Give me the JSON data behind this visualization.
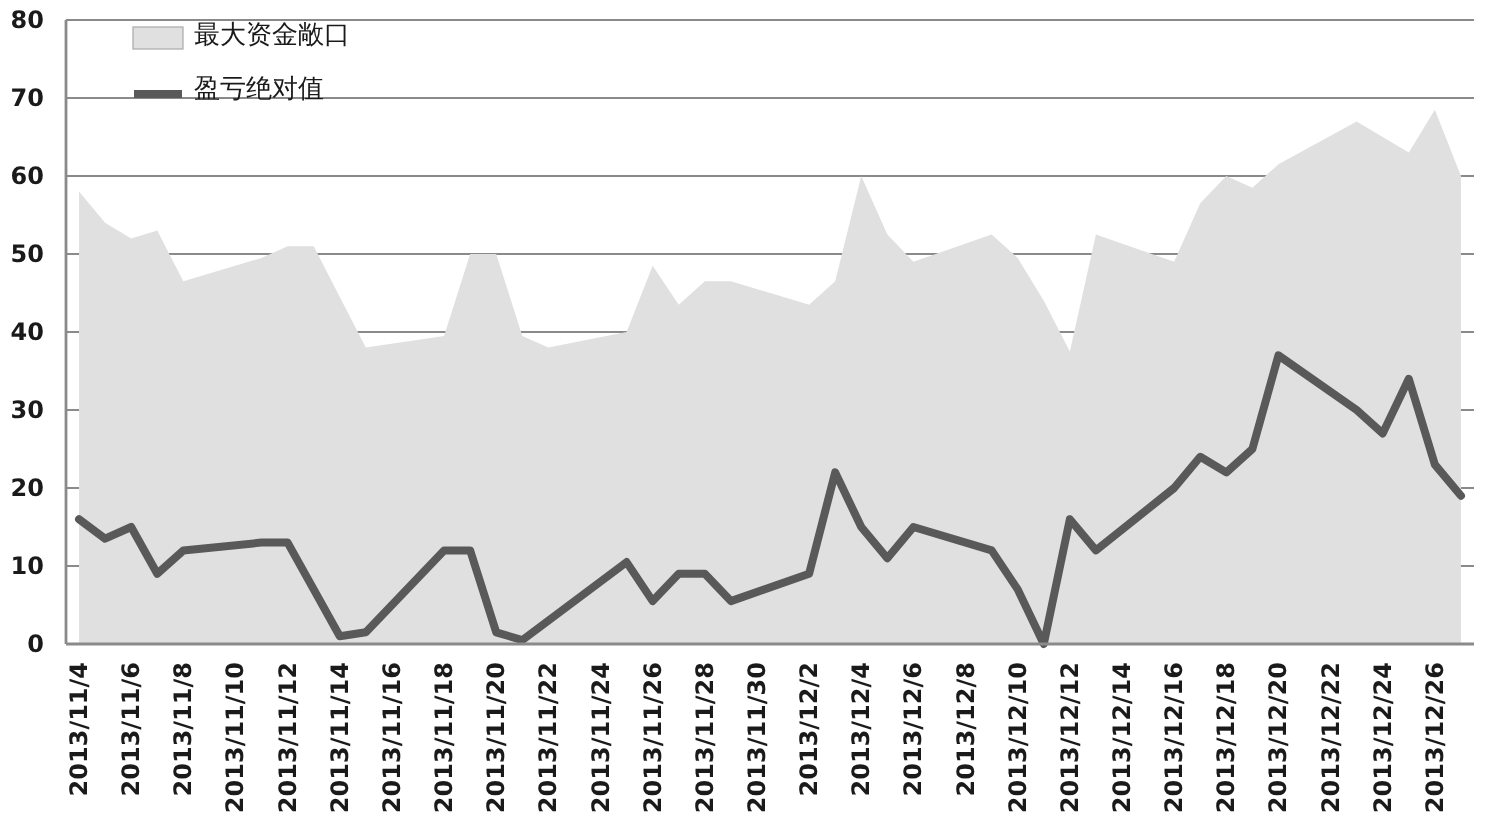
{
  "chart_data": {
    "type": "area",
    "x": [
      "2013-11-04",
      "2013-11-05",
      "2013-11-06",
      "2013-11-07",
      "2013-11-08",
      "2013-11-11",
      "2013-11-12",
      "2013-11-13",
      "2013-11-14",
      "2013-11-15",
      "2013-11-18",
      "2013-11-19",
      "2013-11-20",
      "2013-11-21",
      "2013-11-22",
      "2013-11-25",
      "2013-11-26",
      "2013-11-27",
      "2013-11-28",
      "2013-11-29",
      "2013-12-02",
      "2013-12-03",
      "2013-12-04",
      "2013-12-05",
      "2013-12-06",
      "2013-12-09",
      "2013-12-10",
      "2013-12-11",
      "2013-12-12",
      "2013-12-13",
      "2013-12-16",
      "2013-12-17",
      "2013-12-18",
      "2013-12-19",
      "2013-12-20",
      "2013-12-23",
      "2013-12-24",
      "2013-12-25",
      "2013-12-26",
      "2013-12-27"
    ],
    "series": [
      {
        "name": "最大资金敞口",
        "type": "area",
        "color": "#e0e0e0",
        "values": [
          58,
          54,
          52,
          53,
          46.5,
          49.5,
          51,
          51,
          44.5,
          38,
          39.5,
          50,
          50,
          39.5,
          38,
          40,
          48.5,
          43.5,
          46.5,
          46.5,
          43.5,
          46.5,
          60,
          52.5,
          49,
          52.5,
          49.5,
          44,
          37.5,
          52.5,
          49,
          56.5,
          60,
          58.5,
          61.5,
          67,
          65,
          63,
          68.5,
          60
        ]
      },
      {
        "name": "盈亏绝对值",
        "type": "line",
        "color": "#595959",
        "values": [
          16,
          13.5,
          15,
          9,
          12,
          13,
          13,
          7,
          1,
          1.5,
          12,
          12,
          1.5,
          0.5,
          3,
          10.5,
          5.5,
          9,
          9,
          5.5,
          9,
          22,
          15,
          11,
          15,
          12,
          7,
          0,
          16,
          12,
          20,
          24,
          22,
          25,
          37,
          30,
          27,
          34,
          23,
          19
        ]
      }
    ],
    "xlim": [
      "2013-11-03T12:00",
      "2013-12-27T12:00"
    ],
    "xticks": [
      {
        "value": "2013-11-04",
        "label": "2013/11/4"
      },
      {
        "value": "2013-11-06",
        "label": "2013/11/6"
      },
      {
        "value": "2013-11-08",
        "label": "2013/11/8"
      },
      {
        "value": "2013-11-10",
        "label": "2013/11/10"
      },
      {
        "value": "2013-11-12",
        "label": "2013/11/12"
      },
      {
        "value": "2013-11-14",
        "label": "2013/11/14"
      },
      {
        "value": "2013-11-16",
        "label": "2013/11/16"
      },
      {
        "value": "2013-11-18",
        "label": "2013/11/18"
      },
      {
        "value": "2013-11-20",
        "label": "2013/11/20"
      },
      {
        "value": "2013-11-22",
        "label": "2013/11/22"
      },
      {
        "value": "2013-11-24",
        "label": "2013/11/24"
      },
      {
        "value": "2013-11-26",
        "label": "2013/11/26"
      },
      {
        "value": "2013-11-28",
        "label": "2013/11/28"
      },
      {
        "value": "2013-11-30",
        "label": "2013/11/30"
      },
      {
        "value": "2013-12-02",
        "label": "2013/12/2"
      },
      {
        "value": "2013-12-04",
        "label": "2013/12/4"
      },
      {
        "value": "2013-12-06",
        "label": "2013/12/6"
      },
      {
        "value": "2013-12-08",
        "label": "2013/12/8"
      },
      {
        "value": "2013-12-10",
        "label": "2013/12/10"
      },
      {
        "value": "2013-12-12",
        "label": "2013/12/12"
      },
      {
        "value": "2013-12-14",
        "label": "2013/12/14"
      },
      {
        "value": "2013-12-16",
        "label": "2013/12/16"
      },
      {
        "value": "2013-12-18",
        "label": "2013/12/18"
      },
      {
        "value": "2013-12-20",
        "label": "2013/12/20"
      },
      {
        "value": "2013-12-22",
        "label": "2013/12/22"
      },
      {
        "value": "2013-12-24",
        "label": "2013/12/24"
      },
      {
        "value": "2013-12-26",
        "label": "2013/12/26"
      }
    ],
    "ylim": [
      0,
      80
    ],
    "yticks": [
      0,
      10,
      20,
      30,
      40,
      50,
      60,
      70,
      80
    ],
    "grid": "y",
    "legend": "top left"
  }
}
